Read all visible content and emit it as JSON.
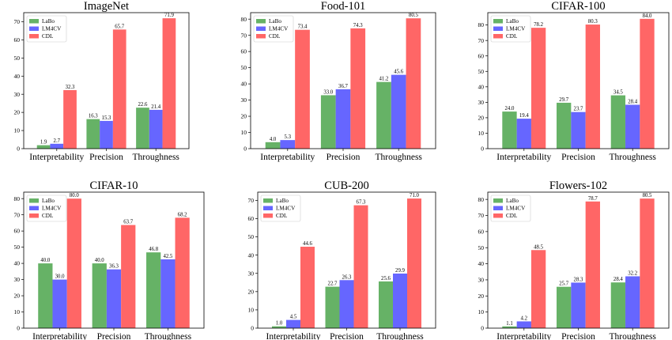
{
  "colors": {
    "LaBo": "#66b266",
    "LM4CV": "#6666ff",
    "CDL": "#ff6666"
  },
  "chart_data": [
    {
      "type": "bar",
      "title": "ImageNet",
      "categories": [
        "Interpretability",
        "Precision",
        "Throughness"
      ],
      "series": [
        {
          "name": "LaBo",
          "values": [
            1.9,
            16.3,
            22.6
          ]
        },
        {
          "name": "LM4CV",
          "values": [
            2.7,
            15.3,
            21.4
          ]
        },
        {
          "name": "CDL",
          "values": [
            32.3,
            65.7,
            71.9
          ]
        }
      ],
      "ylim": [
        0,
        75
      ],
      "yticks": [
        0,
        10,
        20,
        30,
        40,
        50,
        60,
        70
      ],
      "legend": "top-left",
      "grid": false
    },
    {
      "type": "bar",
      "title": "Food-101",
      "categories": [
        "Interpretability",
        "Precision",
        "Throughness"
      ],
      "series": [
        {
          "name": "LaBo",
          "values": [
            4.0,
            33.0,
            41.2
          ]
        },
        {
          "name": "LM4CV",
          "values": [
            5.3,
            36.7,
            45.6
          ]
        },
        {
          "name": "CDL",
          "values": [
            73.4,
            74.3,
            80.5
          ]
        }
      ],
      "ylim": [
        0,
        84
      ],
      "yticks": [
        0,
        10,
        20,
        30,
        40,
        50,
        60,
        70,
        80
      ],
      "legend": "top-left",
      "grid": false
    },
    {
      "type": "bar",
      "title": "CIFAR-100",
      "categories": [
        "Interpretability",
        "Precision",
        "Throughness"
      ],
      "series": [
        {
          "name": "LaBo",
          "values": [
            24.0,
            29.7,
            34.5
          ]
        },
        {
          "name": "LM4CV",
          "values": [
            19.4,
            23.7,
            28.4
          ]
        },
        {
          "name": "CDL",
          "values": [
            78.2,
            80.3,
            84.0
          ]
        }
      ],
      "ylim": [
        0,
        88
      ],
      "yticks": [
        0,
        10,
        20,
        30,
        40,
        50,
        60,
        70,
        80
      ],
      "legend": "top-left",
      "grid": false
    },
    {
      "type": "bar",
      "title": "CIFAR-10",
      "categories": [
        "Interpretability",
        "Precision",
        "Throughness"
      ],
      "series": [
        {
          "name": "LaBo",
          "values": [
            40.0,
            40.0,
            46.8
          ]
        },
        {
          "name": "LM4CV",
          "values": [
            30.0,
            36.3,
            42.5
          ]
        },
        {
          "name": "CDL",
          "values": [
            80.0,
            63.7,
            68.2
          ]
        }
      ],
      "ylim": [
        0,
        84
      ],
      "yticks": [
        0,
        10,
        20,
        30,
        40,
        50,
        60,
        70,
        80
      ],
      "legend": "top-left",
      "grid": false
    },
    {
      "type": "bar",
      "title": "CUB-200",
      "categories": [
        "Interpretability",
        "Precision",
        "Throughness"
      ],
      "series": [
        {
          "name": "LaBo",
          "values": [
            1.0,
            22.7,
            25.6
          ]
        },
        {
          "name": "LM4CV",
          "values": [
            4.5,
            26.3,
            29.9
          ]
        },
        {
          "name": "CDL",
          "values": [
            44.6,
            67.3,
            71.0
          ]
        }
      ],
      "ylim": [
        0,
        74.5
      ],
      "yticks": [
        0,
        10,
        20,
        30,
        40,
        50,
        60,
        70
      ],
      "legend": "top-left",
      "grid": false
    },
    {
      "type": "bar",
      "title": "Flowers-102",
      "categories": [
        "Interpretability",
        "Precision",
        "Throughness"
      ],
      "series": [
        {
          "name": "LaBo",
          "values": [
            1.1,
            25.7,
            28.4
          ]
        },
        {
          "name": "LM4CV",
          "values": [
            4.2,
            28.3,
            32.2
          ]
        },
        {
          "name": "CDL",
          "values": [
            48.5,
            78.7,
            80.5
          ]
        }
      ],
      "ylim": [
        0,
        84.5
      ],
      "yticks": [
        0,
        10,
        20,
        30,
        40,
        50,
        60,
        70,
        80
      ],
      "legend": "top-left",
      "grid": false
    }
  ]
}
